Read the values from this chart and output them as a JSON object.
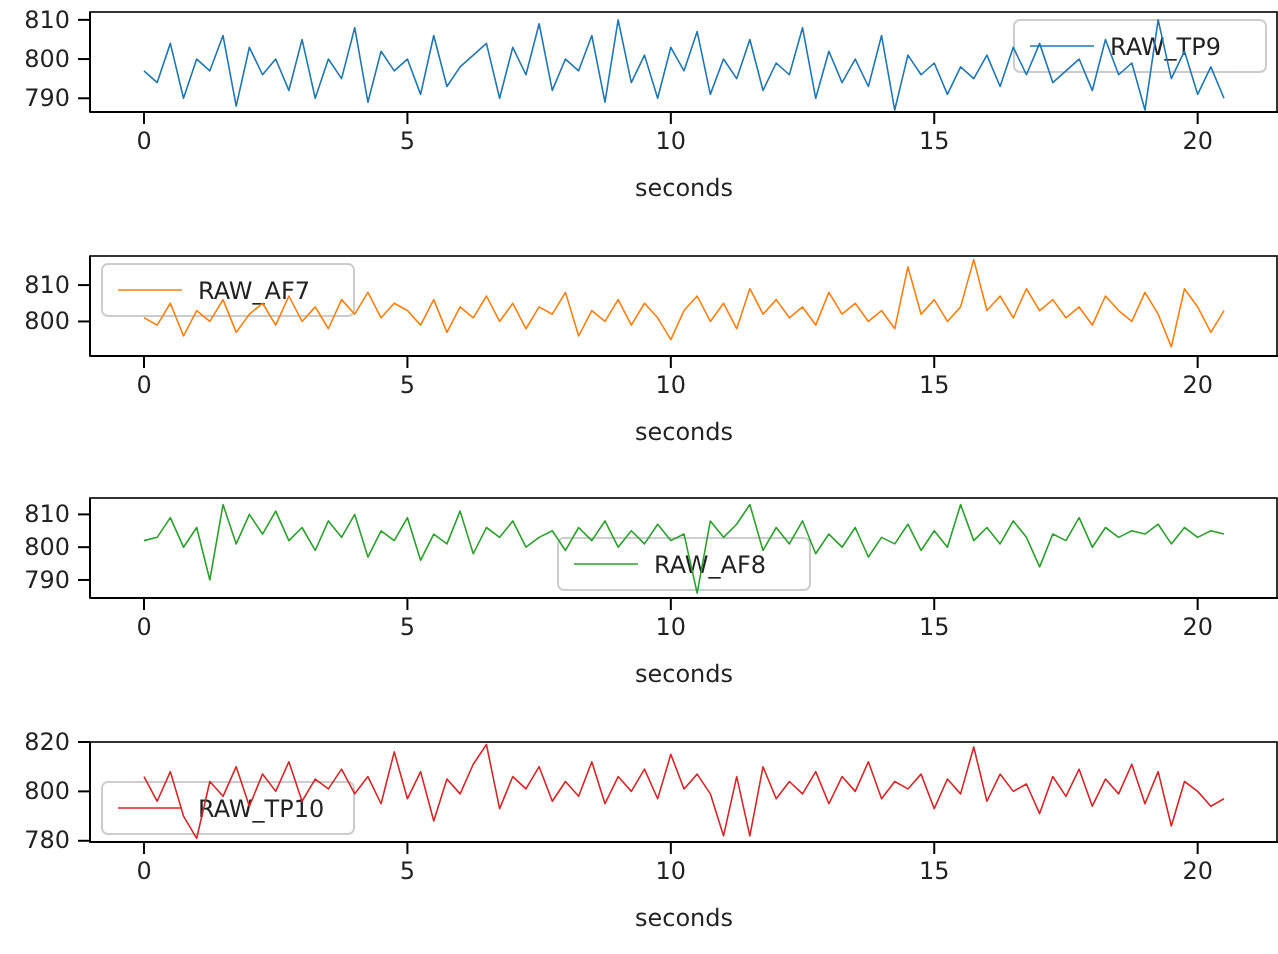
{
  "chart_data": [
    {
      "type": "line",
      "xlabel": "seconds",
      "xlim": [
        -1.025,
        21.525
      ],
      "xticks": [
        0,
        5,
        10,
        15,
        20
      ],
      "ylim": [
        786.5,
        812
      ],
      "yticks": [
        790,
        800,
        810
      ],
      "legend": "top right",
      "x": [
        0,
        0.25,
        0.5,
        0.75,
        1,
        1.25,
        1.5,
        1.75,
        2,
        2.25,
        2.5,
        2.75,
        3,
        3.25,
        3.5,
        3.75,
        4,
        4.25,
        4.5,
        4.75,
        5,
        5.25,
        5.5,
        5.75,
        6,
        6.25,
        6.5,
        6.75,
        7,
        7.25,
        7.5,
        7.75,
        8,
        8.25,
        8.5,
        8.75,
        9,
        9.25,
        9.5,
        9.75,
        10,
        10.25,
        10.5,
        10.75,
        11,
        11.25,
        11.5,
        11.75,
        12,
        12.25,
        12.5,
        12.75,
        13,
        13.25,
        13.5,
        13.75,
        14,
        14.25,
        14.5,
        14.75,
        15,
        15.25,
        15.5,
        15.75,
        16,
        16.25,
        16.5,
        16.75,
        17,
        17.25,
        17.5,
        17.75,
        18,
        18.25,
        18.5,
        18.75,
        19,
        19.25,
        19.5,
        19.75,
        20,
        20.25,
        20.5
      ],
      "series": [
        {
          "name": "RAW_TP9",
          "color": "#1f77b4",
          "values": [
            797,
            794,
            804,
            790,
            800,
            797,
            806,
            788,
            803,
            796,
            800,
            792,
            805,
            790,
            800,
            795,
            808,
            789,
            802,
            797,
            800,
            791,
            806,
            793,
            798,
            801,
            804,
            790,
            803,
            796,
            809,
            792,
            800,
            797,
            806,
            789,
            810,
            794,
            801,
            790,
            803,
            797,
            807,
            791,
            800,
            795,
            805,
            792,
            799,
            796,
            808,
            790,
            802,
            794,
            800,
            793,
            806,
            787,
            801,
            796,
            799,
            791,
            798,
            795,
            801,
            793,
            803,
            796,
            804,
            794,
            797,
            800,
            792,
            805,
            796,
            799,
            787,
            810,
            795,
            802,
            791,
            798,
            790
          ]
        }
      ]
    },
    {
      "type": "line",
      "xlabel": "seconds",
      "xlim": [
        -1.025,
        21.525
      ],
      "xticks": [
        0,
        5,
        10,
        15,
        20
      ],
      "ylim": [
        790.5,
        818
      ],
      "yticks": [
        800,
        810
      ],
      "legend": "top left",
      "x": [
        0,
        0.25,
        0.5,
        0.75,
        1,
        1.25,
        1.5,
        1.75,
        2,
        2.25,
        2.5,
        2.75,
        3,
        3.25,
        3.5,
        3.75,
        4,
        4.25,
        4.5,
        4.75,
        5,
        5.25,
        5.5,
        5.75,
        6,
        6.25,
        6.5,
        6.75,
        7,
        7.25,
        7.5,
        7.75,
        8,
        8.25,
        8.5,
        8.75,
        9,
        9.25,
        9.5,
        9.75,
        10,
        10.25,
        10.5,
        10.75,
        11,
        11.25,
        11.5,
        11.75,
        12,
        12.25,
        12.5,
        12.75,
        13,
        13.25,
        13.5,
        13.75,
        14,
        14.25,
        14.5,
        14.75,
        15,
        15.25,
        15.5,
        15.75,
        16,
        16.25,
        16.5,
        16.75,
        17,
        17.25,
        17.5,
        17.75,
        18,
        18.25,
        18.5,
        18.75,
        19,
        19.25,
        19.5,
        19.75,
        20,
        20.25,
        20.5
      ],
      "series": [
        {
          "name": "RAW_AF7",
          "color": "#ff7f0e",
          "values": [
            801,
            799,
            805,
            796,
            803,
            800,
            806,
            797,
            802,
            805,
            799,
            807,
            800,
            804,
            798,
            806,
            802,
            808,
            801,
            805,
            803,
            799,
            806,
            797,
            804,
            801,
            807,
            800,
            805,
            798,
            804,
            802,
            808,
            796,
            803,
            800,
            806,
            799,
            805,
            801,
            795,
            803,
            807,
            800,
            805,
            798,
            809,
            802,
            806,
            801,
            804,
            799,
            808,
            802,
            805,
            800,
            803,
            798,
            815,
            802,
            806,
            800,
            804,
            817,
            803,
            807,
            801,
            809,
            803,
            806,
            801,
            804,
            799,
            807,
            803,
            800,
            808,
            802,
            793,
            809,
            804,
            797,
            803
          ]
        }
      ]
    },
    {
      "type": "line",
      "xlabel": "seconds",
      "xlim": [
        -1.025,
        21.525
      ],
      "xticks": [
        0,
        5,
        10,
        15,
        20
      ],
      "ylim": [
        784.5,
        815
      ],
      "yticks": [
        790,
        800,
        810
      ],
      "legend": "bottom",
      "x": [
        0,
        0.25,
        0.5,
        0.75,
        1,
        1.25,
        1.5,
        1.75,
        2,
        2.25,
        2.5,
        2.75,
        3,
        3.25,
        3.5,
        3.75,
        4,
        4.25,
        4.5,
        4.75,
        5,
        5.25,
        5.5,
        5.75,
        6,
        6.25,
        6.5,
        6.75,
        7,
        7.25,
        7.5,
        7.75,
        8,
        8.25,
        8.5,
        8.75,
        9,
        9.25,
        9.5,
        9.75,
        10,
        10.25,
        10.5,
        10.75,
        11,
        11.25,
        11.5,
        11.75,
        12,
        12.25,
        12.5,
        12.75,
        13,
        13.25,
        13.5,
        13.75,
        14,
        14.25,
        14.5,
        14.75,
        15,
        15.25,
        15.5,
        15.75,
        16,
        16.25,
        16.5,
        16.75,
        17,
        17.25,
        17.5,
        17.75,
        18,
        18.25,
        18.5,
        18.75,
        19,
        19.25,
        19.5,
        19.75,
        20,
        20.25,
        20.5
      ],
      "series": [
        {
          "name": "RAW_AF8",
          "color": "#2ca02c",
          "values": [
            802,
            803,
            809,
            800,
            806,
            790,
            813,
            801,
            810,
            804,
            811,
            802,
            806,
            799,
            808,
            803,
            810,
            797,
            805,
            802,
            809,
            796,
            804,
            801,
            811,
            798,
            806,
            803,
            808,
            800,
            803,
            805,
            799,
            806,
            802,
            808,
            800,
            805,
            801,
            807,
            802,
            804,
            786,
            808,
            803,
            807,
            813,
            799,
            806,
            801,
            808,
            798,
            804,
            800,
            806,
            797,
            803,
            801,
            807,
            799,
            805,
            800,
            813,
            802,
            806,
            801,
            808,
            803,
            794,
            804,
            802,
            809,
            800,
            806,
            803,
            805,
            804,
            807,
            801,
            806,
            803,
            805,
            804
          ]
        }
      ]
    },
    {
      "type": "line",
      "xlabel": "seconds",
      "xlim": [
        -1.025,
        21.525
      ],
      "xticks": [
        0,
        5,
        10,
        15,
        20
      ],
      "ylim": [
        779.5,
        820
      ],
      "yticks": [
        780,
        800,
        820
      ],
      "legend": "bottom left",
      "x": [
        0,
        0.25,
        0.5,
        0.75,
        1,
        1.25,
        1.5,
        1.75,
        2,
        2.25,
        2.5,
        2.75,
        3,
        3.25,
        3.5,
        3.75,
        4,
        4.25,
        4.5,
        4.75,
        5,
        5.25,
        5.5,
        5.75,
        6,
        6.25,
        6.5,
        6.75,
        7,
        7.25,
        7.5,
        7.75,
        8,
        8.25,
        8.5,
        8.75,
        9,
        9.25,
        9.5,
        9.75,
        10,
        10.25,
        10.5,
        10.75,
        11,
        11.25,
        11.5,
        11.75,
        12,
        12.25,
        12.5,
        12.75,
        13,
        13.25,
        13.5,
        13.75,
        14,
        14.25,
        14.5,
        14.75,
        15,
        15.25,
        15.5,
        15.75,
        16,
        16.25,
        16.5,
        16.75,
        17,
        17.25,
        17.5,
        17.75,
        18,
        18.25,
        18.5,
        18.75,
        19,
        19.25,
        19.5,
        19.75,
        20,
        20.25,
        20.5
      ],
      "series": [
        {
          "name": "RAW_TP10",
          "color": "#d62728",
          "values": [
            806,
            796,
            808,
            790,
            781,
            804,
            798,
            810,
            794,
            807,
            800,
            812,
            796,
            805,
            801,
            809,
            799,
            806,
            795,
            816,
            797,
            808,
            788,
            805,
            799,
            811,
            819,
            793,
            806,
            801,
            810,
            796,
            804,
            798,
            812,
            795,
            806,
            800,
            809,
            797,
            815,
            801,
            807,
            799,
            782,
            806,
            782,
            810,
            797,
            804,
            799,
            808,
            795,
            806,
            800,
            812,
            797,
            804,
            801,
            807,
            793,
            805,
            799,
            818,
            796,
            807,
            800,
            803,
            791,
            806,
            798,
            809,
            794,
            805,
            799,
            811,
            795,
            808,
            786,
            804,
            800,
            794,
            797
          ]
        }
      ]
    }
  ]
}
